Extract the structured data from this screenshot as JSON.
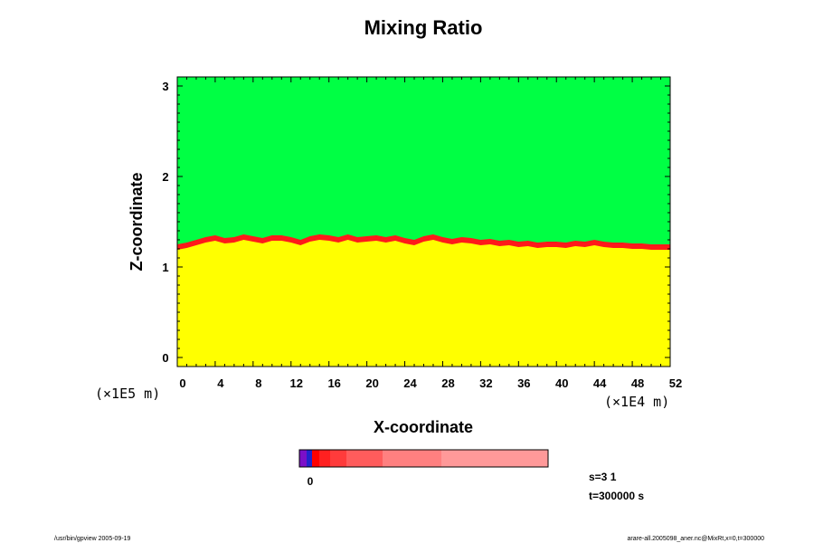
{
  "chart_data": {
    "type": "heatmap",
    "title": "Mixing Ratio",
    "xlabel": "X-coordinate",
    "ylabel": "Z-coordinate",
    "x_multiplier": "(×1E4 m)",
    "y_multiplier": "(×1E5 m)",
    "xlim": [
      0,
      52
    ],
    "ylim": [
      -0.1,
      3.1
    ],
    "x_ticks": [
      "0",
      "4",
      "8",
      "12",
      "16",
      "20",
      "24",
      "28",
      "32",
      "36",
      "40",
      "44",
      "48",
      "52"
    ],
    "y_ticks": [
      "0",
      "1",
      "2",
      "3"
    ],
    "interface_z": [
      1.25,
      1.27,
      1.3,
      1.33,
      1.35,
      1.32,
      1.33,
      1.36,
      1.34,
      1.32,
      1.35,
      1.35,
      1.33,
      1.3,
      1.34,
      1.36,
      1.35,
      1.33,
      1.36,
      1.33,
      1.34,
      1.35,
      1.33,
      1.35,
      1.32,
      1.3,
      1.34,
      1.36,
      1.33,
      1.31,
      1.33,
      1.32,
      1.3,
      1.31,
      1.29,
      1.3,
      1.28,
      1.29,
      1.27,
      1.28,
      1.28,
      1.27,
      1.29,
      1.28,
      1.3,
      1.28,
      1.27,
      1.27,
      1.26,
      1.26,
      1.25,
      1.25,
      1.25
    ],
    "colors": {
      "upper_layer": "#00ff44",
      "lower_layer": "#ff1a1a",
      "lower_layer_alt": "#ff3333",
      "transition_1": "#ffff00",
      "transition_2": "#ffc000",
      "transition_3": "#ff8000"
    },
    "colorbar": {
      "segments": [
        "#7b0fc8",
        "#2222cc",
        "#ff0000",
        "#ff2020",
        "#ff3b3b",
        "#ff5c5c",
        "#ff8080",
        "#ff9999"
      ],
      "label": "0"
    }
  },
  "info": {
    "s": "s=3 1",
    "t": "t=300000 s"
  },
  "footer": {
    "left": "/usr/bin/gpview 2005-09-19",
    "right": "arare-all.2005098_aner.nc@MixRt,x=0,t=300000"
  }
}
